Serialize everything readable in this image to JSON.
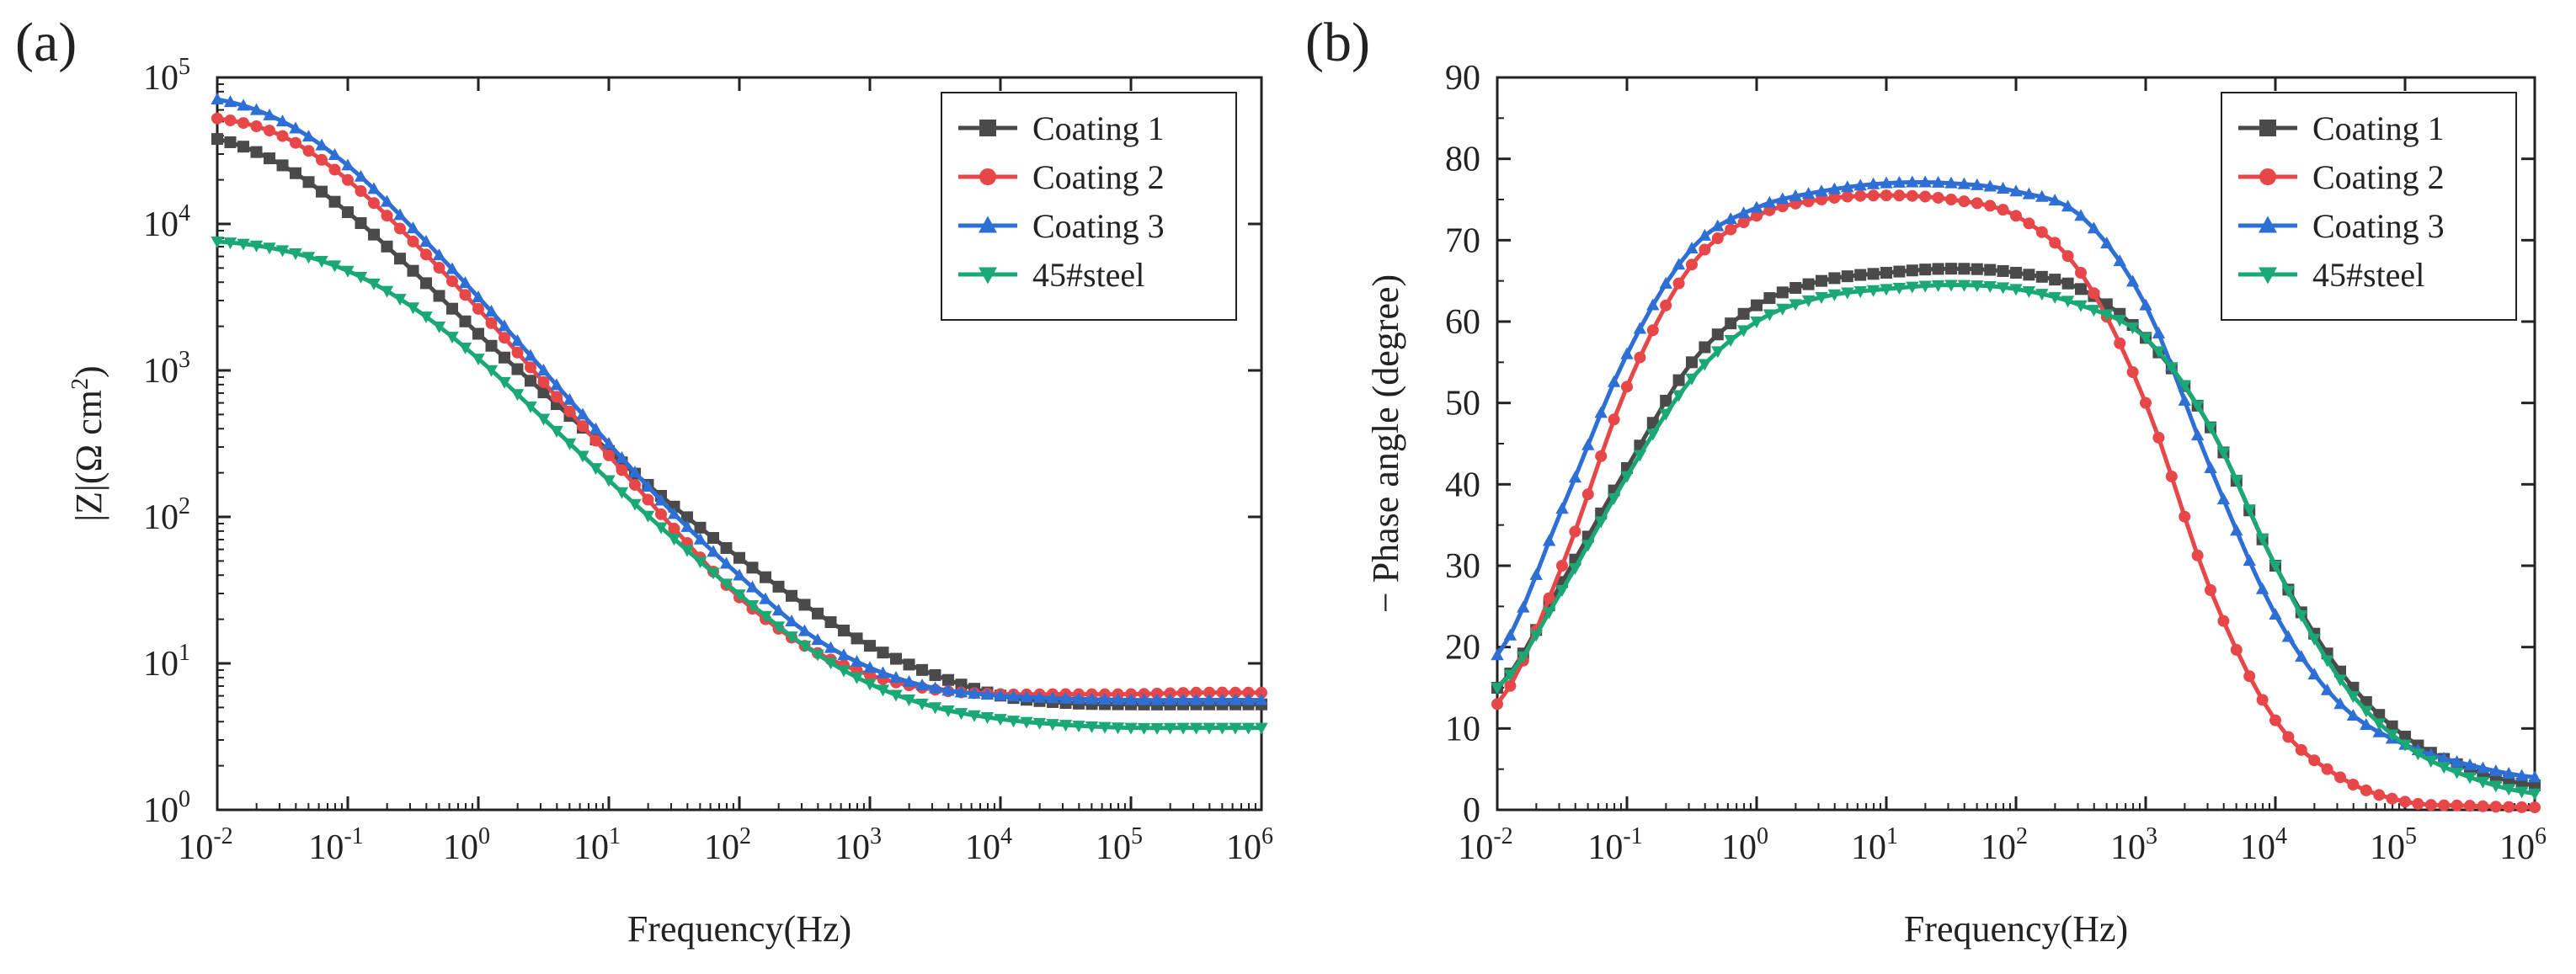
{
  "colors": {
    "coating1": "#4a4a4a",
    "coating2": "#e8474a",
    "coating3": "#2e6fd6",
    "steel45": "#1aa874",
    "axis": "#222222"
  },
  "chart_data": [
    {
      "panel_label": "(a)",
      "type": "line",
      "title": "",
      "xlabel": "Frequency(Hz)",
      "ylabel_main": "|Z|(Ω cm",
      "ylabel_sup": "2",
      "ylabel_end": ")",
      "xscale": "log",
      "yscale": "log",
      "xlim_exp": [
        -2,
        6
      ],
      "ylim_exp": [
        0,
        5
      ],
      "x_tick_labels": [
        {
          "base": "10",
          "exp": "-2"
        },
        {
          "base": "10",
          "exp": "-1"
        },
        {
          "base": "10",
          "exp": "0"
        },
        {
          "base": "10",
          "exp": "1"
        },
        {
          "base": "10",
          "exp": "2"
        },
        {
          "base": "10",
          "exp": "3"
        },
        {
          "base": "10",
          "exp": "4"
        },
        {
          "base": "10",
          "exp": "5"
        },
        {
          "base": "10",
          "exp": "6"
        }
      ],
      "y_tick_labels": [
        {
          "base": "10",
          "exp": "0"
        },
        {
          "base": "10",
          "exp": "1"
        },
        {
          "base": "10",
          "exp": "2"
        },
        {
          "base": "10",
          "exp": "3"
        },
        {
          "base": "10",
          "exp": "4"
        },
        {
          "base": "10",
          "exp": "5"
        }
      ],
      "legend_position": "top-right",
      "series": [
        {
          "name": "Coating 1",
          "marker": "square",
          "color_key": "coating1",
          "log_x": [
            -2,
            -1.5,
            -1,
            -0.5,
            0,
            0.5,
            1,
            1.5,
            2,
            2.5,
            3,
            3.5,
            4,
            4.5,
            5,
            5.5,
            6
          ],
          "log_y": [
            4.58,
            4.4,
            4.08,
            3.68,
            3.25,
            2.85,
            2.45,
            2.07,
            1.72,
            1.4,
            1.12,
            0.92,
            0.78,
            0.73,
            0.72,
            0.72,
            0.72
          ]
        },
        {
          "name": "Coating 2",
          "marker": "circle",
          "color_key": "coating2",
          "log_x": [
            -2,
            -1.5,
            -1,
            -0.5,
            0,
            0.5,
            1,
            1.5,
            2,
            2.5,
            3,
            3.5,
            4,
            4.5,
            5,
            5.5,
            6
          ],
          "log_y": [
            4.72,
            4.6,
            4.3,
            3.88,
            3.42,
            2.92,
            2.42,
            1.92,
            1.45,
            1.12,
            0.92,
            0.82,
            0.79,
            0.79,
            0.79,
            0.8,
            0.8
          ]
        },
        {
          "name": "Coating 3",
          "marker": "triangle-up",
          "color_key": "coating3",
          "log_x": [
            -2,
            -1.5,
            -1,
            -0.5,
            0,
            0.5,
            1,
            1.5,
            2,
            2.5,
            3,
            3.5,
            4,
            4.5,
            5,
            5.5,
            6
          ],
          "log_y": [
            4.85,
            4.7,
            4.4,
            3.97,
            3.5,
            3.0,
            2.5,
            2.02,
            1.6,
            1.22,
            0.97,
            0.83,
            0.78,
            0.76,
            0.75,
            0.75,
            0.75
          ]
        },
        {
          "name": "45#steel",
          "marker": "triangle-down",
          "color_key": "steel45",
          "log_x": [
            -2,
            -1.5,
            -1,
            -0.5,
            0,
            0.5,
            1,
            1.5,
            2,
            2.5,
            3,
            3.5,
            4,
            4.5,
            5,
            5.5,
            6
          ],
          "log_y": [
            3.88,
            3.82,
            3.68,
            3.43,
            3.08,
            2.67,
            2.25,
            1.85,
            1.47,
            1.12,
            0.86,
            0.7,
            0.62,
            0.58,
            0.56,
            0.56,
            0.56
          ]
        }
      ]
    },
    {
      "panel_label": "(b)",
      "type": "line",
      "title": "",
      "xlabel": "Frequency(Hz)",
      "ylabel_main": "− Phase angle (degree)",
      "xscale": "log",
      "yscale": "linear",
      "xlim_exp": [
        -2,
        6
      ],
      "ylim": [
        0,
        90
      ],
      "x_tick_labels": [
        {
          "base": "10",
          "exp": "-2"
        },
        {
          "base": "10",
          "exp": "-1"
        },
        {
          "base": "10",
          "exp": "0"
        },
        {
          "base": "10",
          "exp": "1"
        },
        {
          "base": "10",
          "exp": "2"
        },
        {
          "base": "10",
          "exp": "3"
        },
        {
          "base": "10",
          "exp": "4"
        },
        {
          "base": "10",
          "exp": "5"
        },
        {
          "base": "10",
          "exp": "6"
        }
      ],
      "y_tick_labels": [
        "0",
        "10",
        "20",
        "30",
        "40",
        "50",
        "60",
        "70",
        "80",
        "90"
      ],
      "legend_position": "top-right",
      "series": [
        {
          "name": "Coating 1",
          "marker": "square",
          "color_key": "coating1",
          "log_x": [
            -2,
            -1.5,
            -1,
            -0.5,
            0,
            0.5,
            1,
            1.5,
            2,
            2.5,
            3,
            3.5,
            4,
            4.5,
            5,
            5.5,
            6
          ],
          "y": [
            15,
            28,
            42,
            55,
            62,
            65,
            66,
            66.5,
            66,
            64,
            58,
            47,
            30,
            17,
            9,
            5,
            3
          ]
        },
        {
          "name": "Coating 2",
          "marker": "circle",
          "color_key": "coating2",
          "log_x": [
            -2,
            -1.5,
            -1,
            -0.5,
            0,
            0.5,
            1,
            1.5,
            2,
            2.5,
            3,
            3.5,
            4,
            4.5,
            5,
            5.5,
            6
          ],
          "y": [
            13,
            30,
            52,
            67,
            73,
            75,
            75.5,
            75,
            73,
            66,
            50,
            27,
            11,
            4,
            1,
            0.5,
            0.3
          ]
        },
        {
          "name": "Coating 3",
          "marker": "triangle-up",
          "color_key": "coating3",
          "log_x": [
            -2,
            -1.5,
            -1,
            -0.5,
            0,
            0.5,
            1,
            1.5,
            2,
            2.5,
            3,
            3.5,
            4,
            4.5,
            5,
            5.5,
            6
          ],
          "y": [
            19,
            37,
            56,
            69,
            74,
            76,
            77,
            77,
            76,
            73,
            62,
            42,
            24,
            13,
            8,
            5.5,
            4
          ]
        },
        {
          "name": "45#steel",
          "marker": "triangle-down",
          "color_key": "steel45",
          "log_x": [
            -2,
            -1.5,
            -1,
            -0.5,
            0,
            0.5,
            1,
            1.5,
            2,
            2.5,
            3,
            3.5,
            4,
            4.5,
            5,
            5.5,
            6
          ],
          "y": [
            15,
            27,
            41,
            53,
            60,
            63,
            64,
            64.5,
            64,
            62,
            58,
            47,
            30,
            16,
            8,
            4,
            2
          ]
        }
      ]
    }
  ]
}
